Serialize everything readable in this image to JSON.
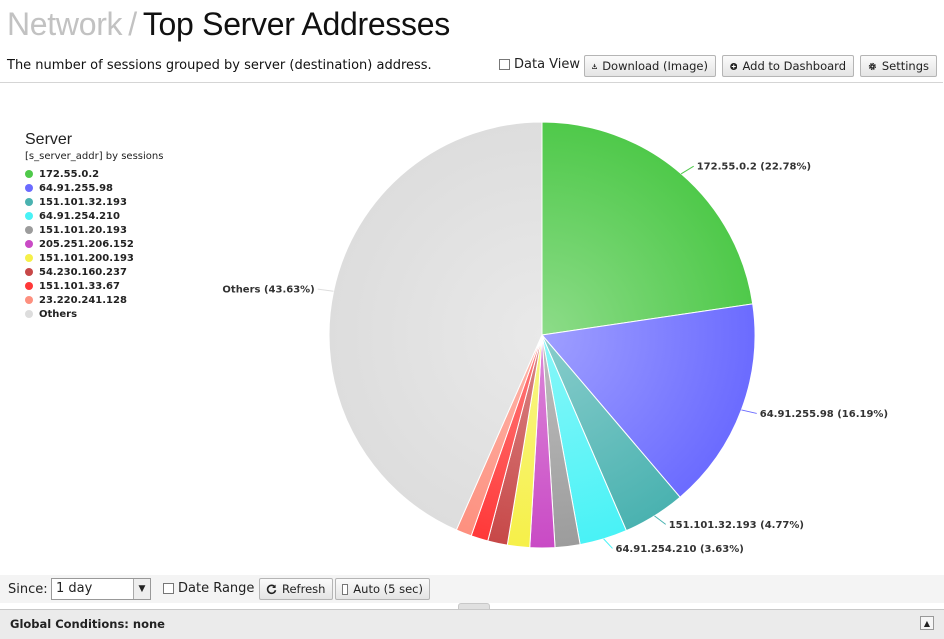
{
  "header": {
    "crumb": "Network",
    "separator": "/",
    "title": "Top Server Addresses",
    "subtitle": "The number of sessions grouped by server (destination) address."
  },
  "toolbar": {
    "data_view_label": "Data View",
    "download_label": "Download (Image)",
    "add_dashboard_label": "Add to Dashboard",
    "settings_label": "Settings"
  },
  "legend": {
    "title": "Server",
    "subtitle": "[s_server_addr] by sessions"
  },
  "chart_data": {
    "type": "pie",
    "slices": [
      {
        "label": "172.55.0.2",
        "value": 22.78,
        "color": "#4fc94a",
        "callout": "172.55.0.2 (22.78%)"
      },
      {
        "label": "64.91.255.98",
        "value": 16.19,
        "color": "#6b6bff",
        "callout": "64.91.255.98 (16.19%)"
      },
      {
        "label": "151.101.32.193",
        "value": 4.77,
        "color": "#4ab2b0",
        "callout": "151.101.32.193 (4.77%)"
      },
      {
        "label": "64.91.254.210",
        "value": 3.63,
        "color": "#49f2f6",
        "callout": "64.91.254.210 (3.63%)"
      },
      {
        "label": "151.101.20.193",
        "value": 1.9,
        "color": "#9c9c9c",
        "callout": ""
      },
      {
        "label": "205.251.206.152",
        "value": 1.9,
        "color": "#c94ac5",
        "callout": ""
      },
      {
        "label": "151.101.200.193",
        "value": 1.7,
        "color": "#f6f049",
        "callout": ""
      },
      {
        "label": "54.230.160.237",
        "value": 1.5,
        "color": "#c74848",
        "callout": ""
      },
      {
        "label": "151.101.33.67",
        "value": 1.3,
        "color": "#ff3838",
        "callout": ""
      },
      {
        "label": "23.220.241.128",
        "value": 1.2,
        "color": "#fd907f",
        "callout": ""
      },
      {
        "label": "Others",
        "value": 43.63,
        "color": "#dddddd",
        "callout": "Others (43.63%)"
      }
    ]
  },
  "footer": {
    "since_label": "Since:",
    "since_value": "1 day",
    "date_range_label": "Date Range",
    "refresh_label": "Refresh",
    "auto_label": "Auto (5 sec)",
    "global_conditions": "Global Conditions: none"
  }
}
